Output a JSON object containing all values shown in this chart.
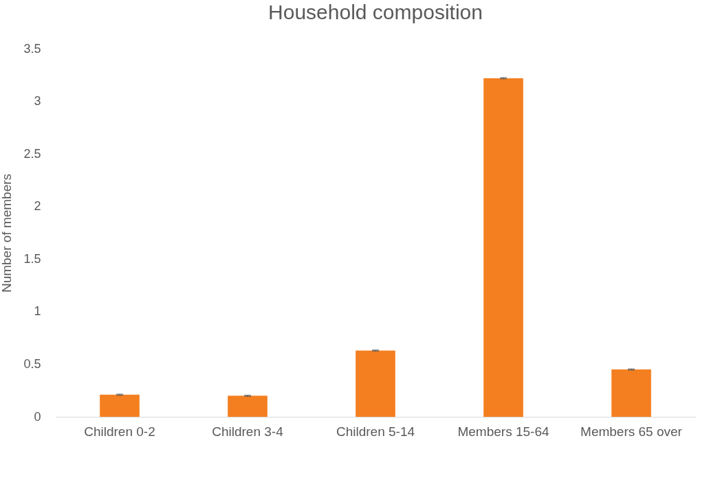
{
  "chart_data": {
    "type": "bar",
    "title": "Household composition",
    "ylabel": "Number of members",
    "categories": [
      "Children 0-2",
      "Children 3-4",
      "Children 5-14",
      "Members 15-64",
      "Members 65 over"
    ],
    "values": [
      0.21,
      0.2,
      0.63,
      3.22,
      0.45
    ],
    "errors": [
      0.005,
      0.005,
      0.005,
      0.005,
      0.005
    ],
    "color": "#f47f20",
    "ylim": [
      0,
      3.5
    ],
    "yticks": [
      0,
      0.5,
      1,
      1.5,
      2,
      2.5,
      3,
      3.5
    ],
    "grid": false
  }
}
